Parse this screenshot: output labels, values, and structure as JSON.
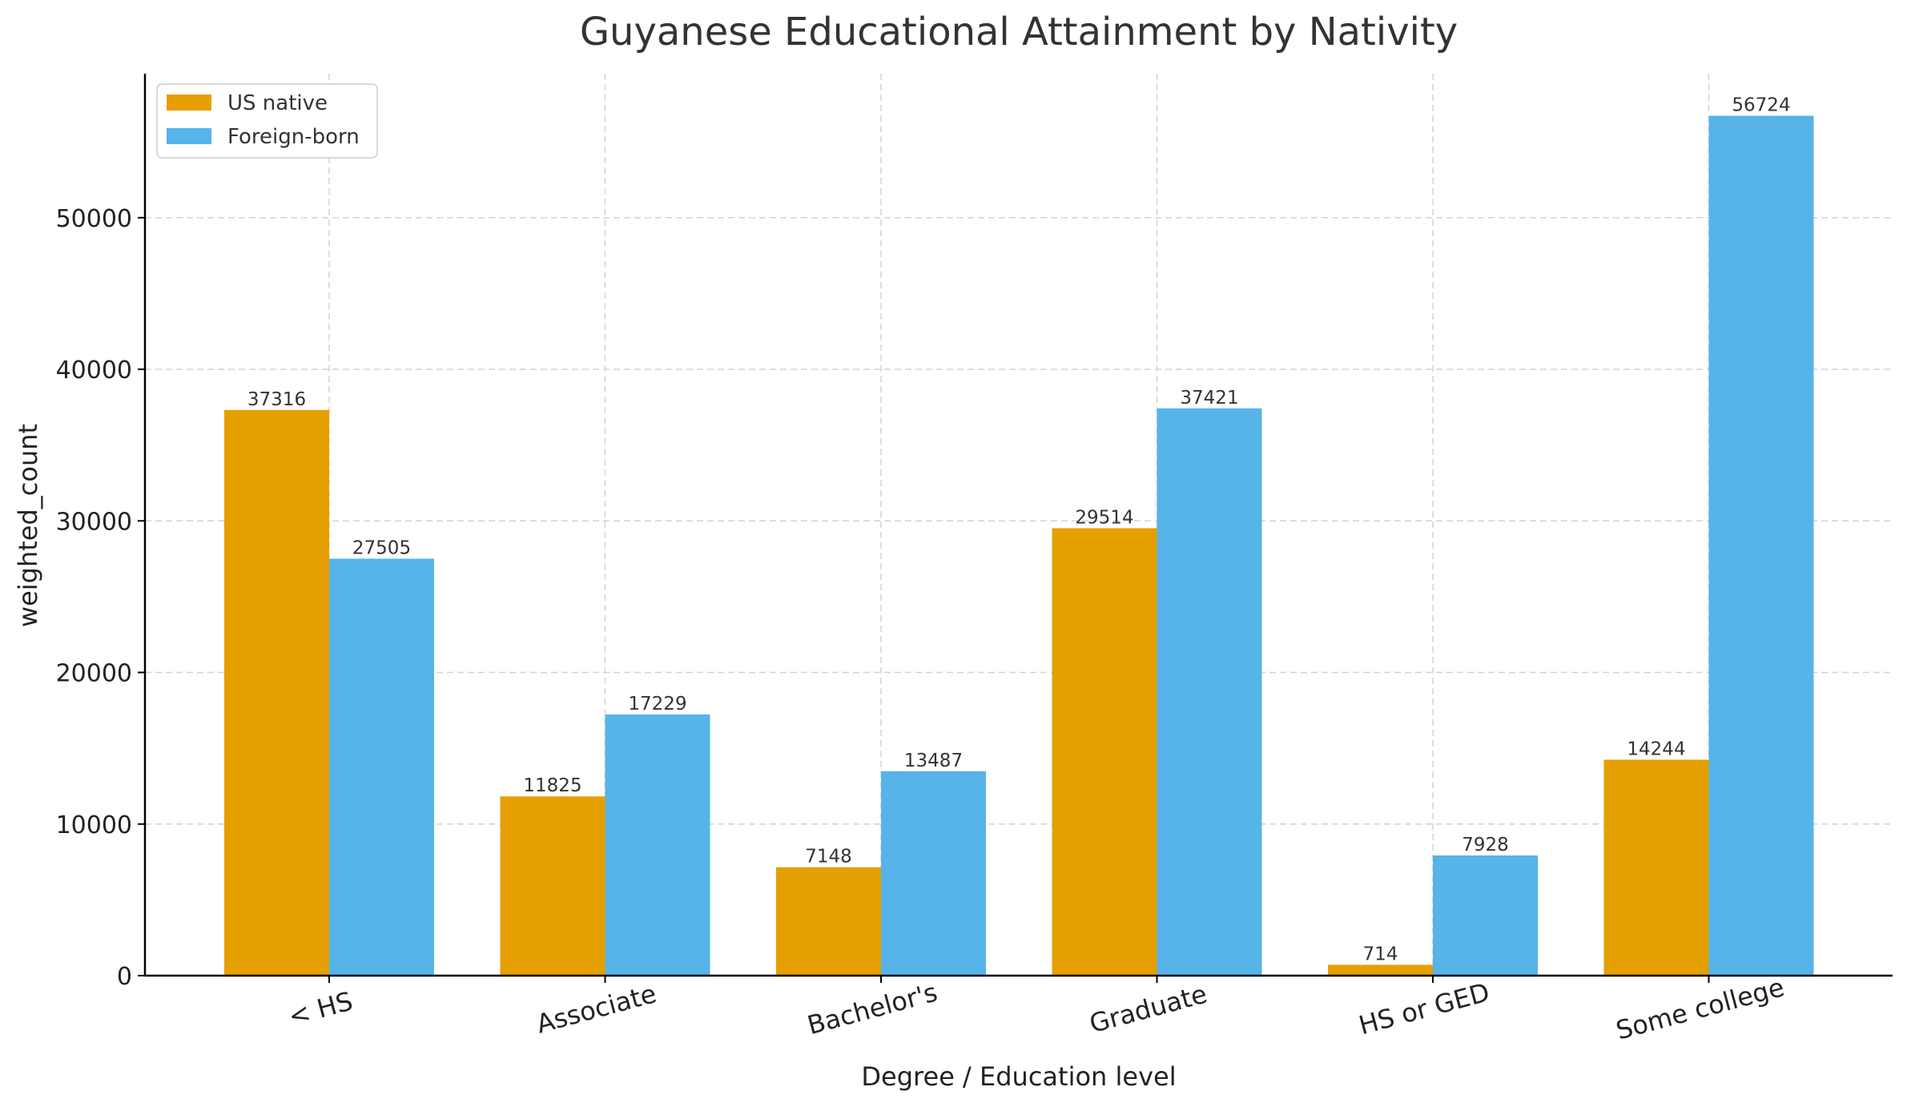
{
  "chart_data": {
    "type": "bar",
    "title": "Guyanese Educational Attainment by Nativity",
    "xlabel": "Degree / Education level",
    "ylabel": "weighted_count",
    "categories": [
      "< HS",
      "Associate",
      "Bachelor's",
      "Graduate",
      "HS or GED",
      "Some college"
    ],
    "series": [
      {
        "name": "US native",
        "color": "#E69F00",
        "values": [
          37316,
          11825,
          7148,
          29514,
          714,
          14244
        ]
      },
      {
        "name": "Foreign-born",
        "color": "#56B4E9",
        "values": [
          27505,
          17229,
          13487,
          37421,
          7928,
          56724
        ]
      }
    ],
    "ylim": [
      0,
      59500
    ],
    "yticks": [
      0,
      10000,
      20000,
      30000,
      40000,
      50000
    ],
    "grid": true,
    "legend_position": "top-left",
    "x_tick_rotation": "slanted"
  }
}
